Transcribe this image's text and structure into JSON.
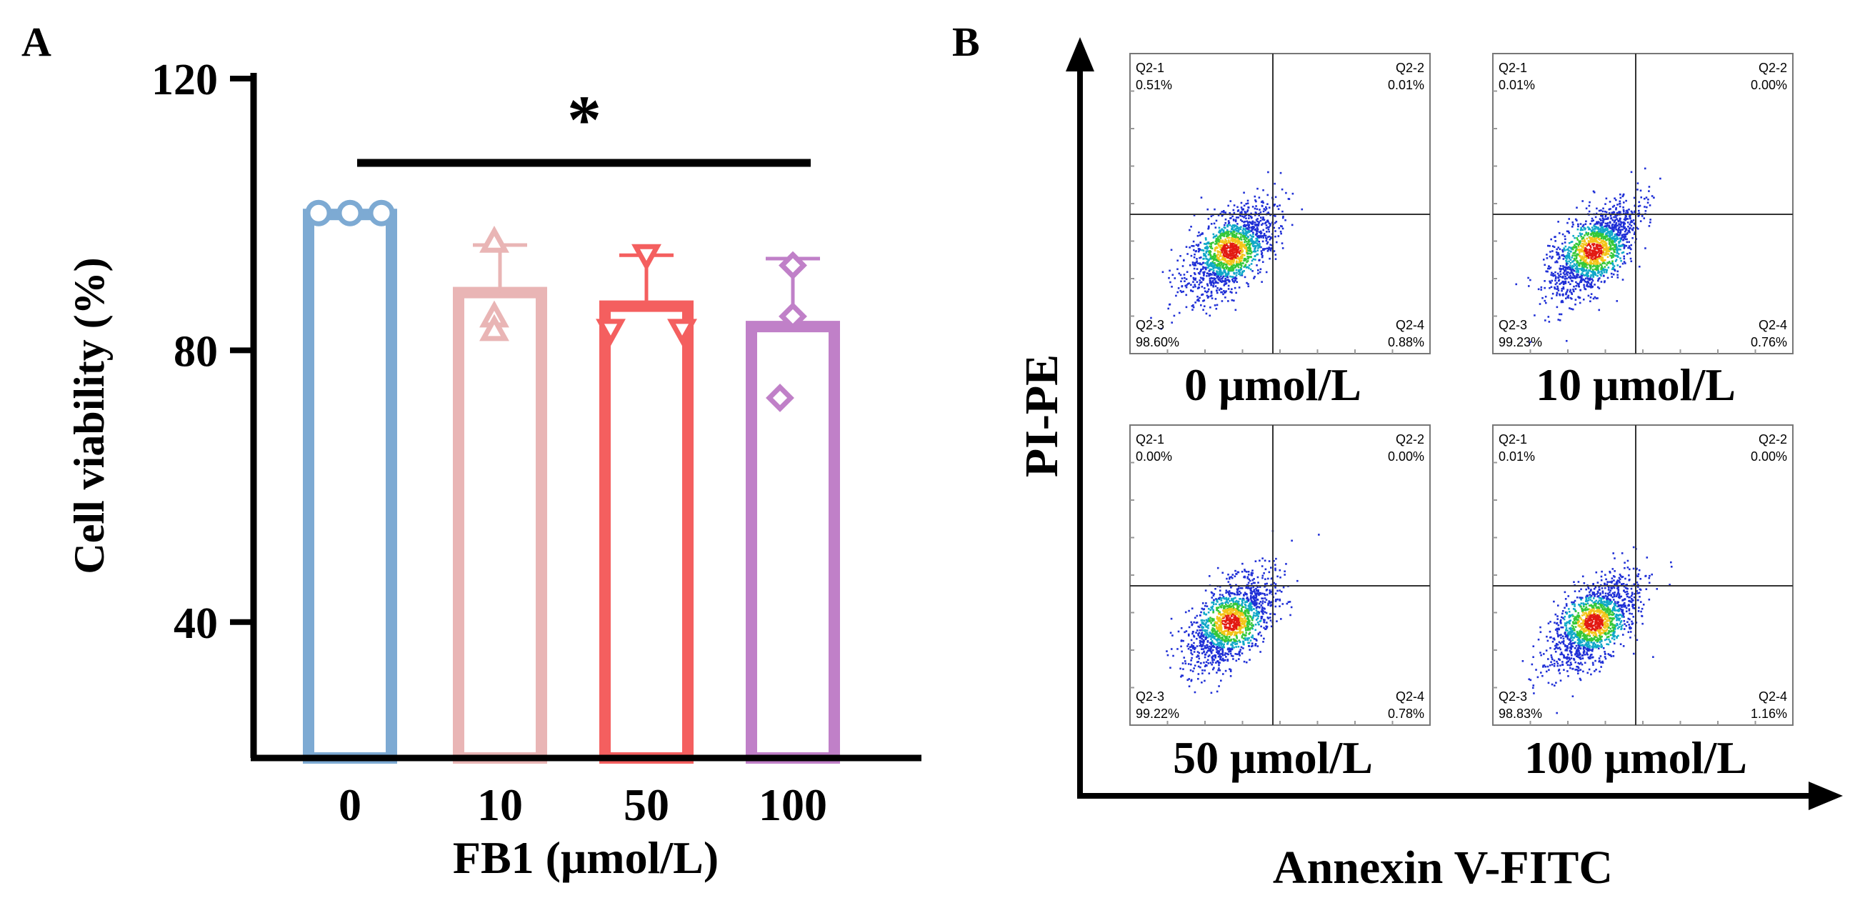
{
  "chart_data": [
    {
      "panel": "A",
      "type": "bar",
      "xlabel": "FB1 (μmol/L)",
      "ylabel": "Cell viability (%)",
      "ylim": [
        20,
        120
      ],
      "yticks": [
        40,
        80,
        120
      ],
      "categories": [
        "0",
        "10",
        "50",
        "100"
      ],
      "values": [
        100,
        88.5,
        86.5,
        83.5
      ],
      "errors": [
        0.5,
        7,
        7.5,
        10
      ],
      "points": [
        [
          100,
          100,
          100
        ],
        [
          96,
          85,
          83
        ],
        [
          94,
          83,
          83
        ],
        [
          92.5,
          85,
          73
        ]
      ],
      "colors": [
        "#7daad3",
        "#e9b5b5",
        "#f45f5f",
        "#c080c8"
      ],
      "markers": [
        "circle",
        "triangle-up",
        "triangle-down",
        "diamond"
      ],
      "significance": "*"
    },
    {
      "panel": "B",
      "type": "scatter",
      "xlabel": "Annexin V-FITC",
      "ylabel": "PI-PE",
      "quadrant_names": [
        "Q2-1",
        "Q2-2",
        "Q2-3",
        "Q2-4"
      ],
      "plots": [
        {
          "label": "0 μmol/L",
          "q1": "0.51%",
          "q2": "0.01%",
          "q3": "98.60%",
          "q4": "0.88%"
        },
        {
          "label": "10 μmol/L",
          "q1": "0.01%",
          "q2": "0.00%",
          "q3": "99.23%",
          "q4": "0.76%"
        },
        {
          "label": "50 μmol/L",
          "q1": "0.00%",
          "q2": "0.00%",
          "q3": "99.22%",
          "q4": "0.78%"
        },
        {
          "label": "100 μmol/L",
          "q1": "0.01%",
          "q2": "0.00%",
          "q3": "98.83%",
          "q4": "1.16%"
        }
      ]
    }
  ]
}
